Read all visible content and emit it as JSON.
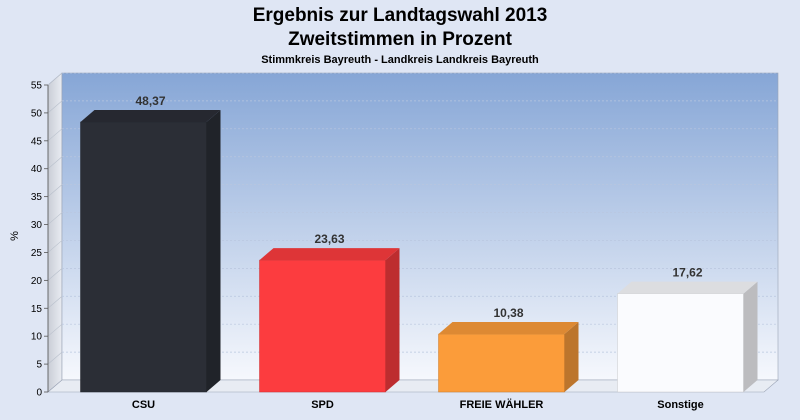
{
  "chart_data": {
    "type": "bar",
    "title": "Ergebnis zur Landtagswahl 2013",
    "title2": "Zweitstimmen in Prozent",
    "subtitle": "Stimmkreis Bayreuth - Landkreis Landkreis Bayreuth",
    "ylabel": "%",
    "xlabel": "",
    "ylim": [
      0,
      55
    ],
    "yticks": [
      0,
      5,
      10,
      15,
      20,
      25,
      30,
      35,
      40,
      45,
      50,
      55
    ],
    "categories": [
      "CSU",
      "SPD",
      "FREIE WÄHLER",
      "Sonstige"
    ],
    "values": [
      48.37,
      23.63,
      10.38,
      17.62
    ],
    "value_labels": [
      "48,37",
      "23,63",
      "10,38",
      "17,62"
    ],
    "colors": [
      "#2b2e36",
      "#fc3c3f",
      "#fb9c3a",
      "#fafbfe"
    ],
    "grid": true,
    "legend": "none"
  }
}
